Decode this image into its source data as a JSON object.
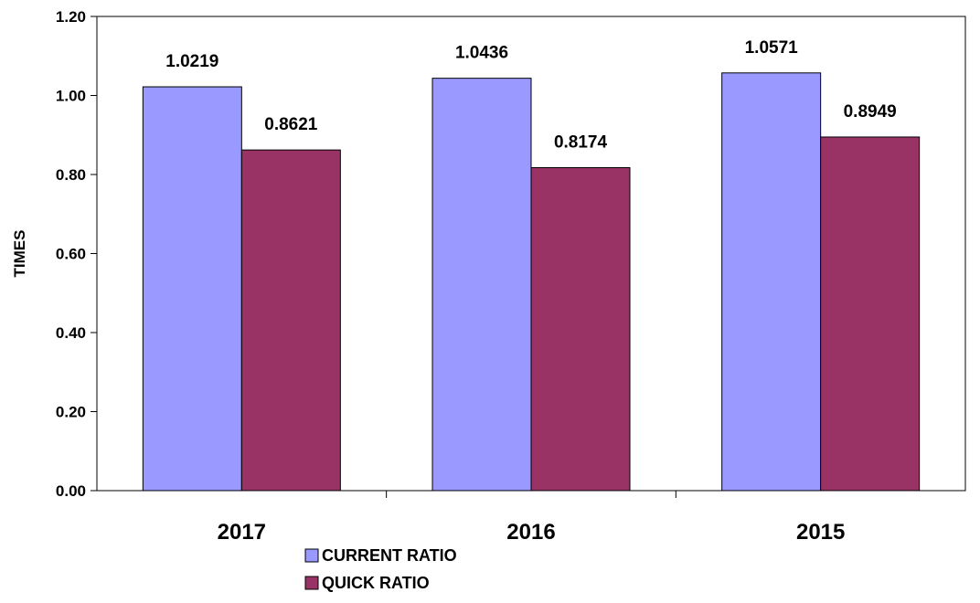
{
  "chart_data": {
    "type": "bar",
    "title": "",
    "xlabel": "",
    "ylabel": "TIMES",
    "ylim": [
      0,
      1.2
    ],
    "yticks": [
      "0.00",
      "0.20",
      "0.40",
      "0.60",
      "0.80",
      "1.00",
      "1.20"
    ],
    "categories": [
      "2017",
      "2016",
      "2015"
    ],
    "series": [
      {
        "name": "CURRENT RATIO",
        "values": [
          1.0219,
          1.0436,
          1.0571
        ],
        "labels": [
          "1.0219",
          "1.0436",
          "1.0571"
        ],
        "color": "#9999ff"
      },
      {
        "name": "QUICK RATIO",
        "values": [
          0.8621,
          0.8174,
          0.8949
        ],
        "labels": [
          "0.8621",
          "0.8174",
          "0.8949"
        ],
        "color": "#993366"
      }
    ],
    "grid": false,
    "legend_position": "bottom"
  }
}
